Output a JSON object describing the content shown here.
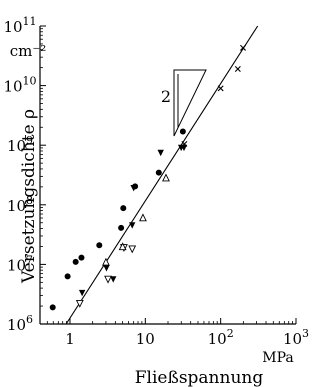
{
  "chart_data": {
    "type": "scatter",
    "x_scale": "log",
    "y_scale": "log",
    "xlim": [
      0.4,
      1000
    ],
    "ylim": [
      1000000,
      100000000000
    ],
    "grid": false,
    "xlabel": "Fließspannung",
    "xunit": "MPa",
    "ylabel": "Versetzungsdichte ρ",
    "yunit": "cm⁻²",
    "x_ticks": [
      {
        "value": 1,
        "label": "1"
      },
      {
        "value": 10,
        "label": "10"
      },
      {
        "value": 100,
        "label": "10",
        "exp": "2"
      },
      {
        "value": 1000,
        "label": "10",
        "exp": "3"
      }
    ],
    "y_ticks": [
      {
        "value": 1000000,
        "label": "10",
        "exp": "6"
      },
      {
        "value": 10000000,
        "label": "10",
        "exp": "7"
      },
      {
        "value": 100000000,
        "label": "10",
        "exp": "8"
      },
      {
        "value": 1000000000,
        "label": "10",
        "exp": "9"
      },
      {
        "value": 10000000000,
        "label": "10",
        "exp": "10"
      },
      {
        "value": 100000000000,
        "label": "10",
        "exp": "11"
      }
    ],
    "fit_line": {
      "x": [
        0.89,
        310
      ],
      "y": [
        1000000,
        100000000000
      ]
    },
    "slope_triangle": {
      "label": "2"
    },
    "series": [
      {
        "marker": "filled-circle",
        "points": [
          [
            0.59,
            1900000
          ],
          [
            0.93,
            6300000
          ],
          [
            1.19,
            11000000
          ],
          [
            1.42,
            13000000
          ],
          [
            2.45,
            21000000
          ],
          [
            4.77,
            41000000
          ],
          [
            5.1,
            88000000
          ],
          [
            7.32,
            204000000
          ],
          [
            15.1,
            346000000
          ],
          [
            31.5,
            1700000000
          ]
        ]
      },
      {
        "marker": "filled-triangle-down",
        "points": [
          [
            1.45,
            3300000
          ],
          [
            3.05,
            8600000
          ],
          [
            3.75,
            5600000
          ],
          [
            6.7,
            45000000
          ],
          [
            7.0,
            190000000
          ],
          [
            16.0,
            740000000
          ],
          [
            29.9,
            900000000
          ],
          [
            32.6,
            900000000
          ]
        ]
      },
      {
        "marker": "open-triangle-down",
        "points": [
          [
            1.35,
            2200000
          ],
          [
            3.2,
            5600000
          ],
          [
            5.2,
            19000000
          ],
          [
            6.7,
            18000000
          ]
        ]
      },
      {
        "marker": "open-triangle-up",
        "points": [
          [
            3.0,
            11000000
          ],
          [
            5.0,
            20000000
          ],
          [
            9.3,
            61000000
          ],
          [
            18.8,
            285000000
          ]
        ]
      },
      {
        "marker": "cross",
        "points": [
          [
            33.0,
            1050000000
          ],
          [
            100.0,
            9000000000
          ],
          [
            169.0,
            19000000000
          ],
          [
            198.0,
            43000000000
          ]
        ]
      }
    ]
  }
}
